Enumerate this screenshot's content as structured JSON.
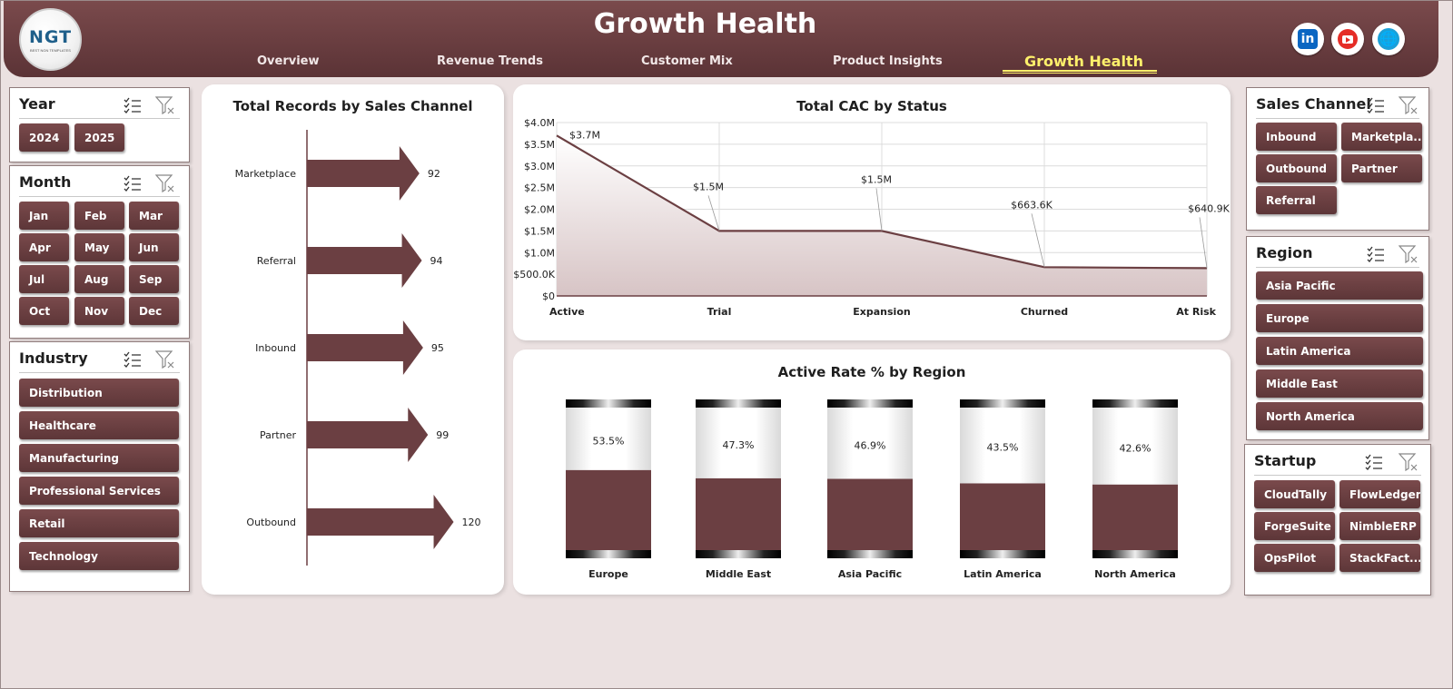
{
  "header": {
    "title": "Growth Health",
    "logo_text": "NGT",
    "logo_subtext": "BEST NGN TEMPLATES",
    "tabs": [
      {
        "label": "Overview",
        "active": false
      },
      {
        "label": "Revenue Trends",
        "active": false
      },
      {
        "label": "Customer Mix",
        "active": false
      },
      {
        "label": "Product Insights",
        "active": false
      },
      {
        "label": "Growth Health",
        "active": true
      }
    ],
    "social_icons": [
      "linkedin-icon",
      "youtube-icon",
      "website-icon"
    ]
  },
  "slicers": {
    "year": {
      "title": "Year",
      "items": [
        "2024",
        "2025"
      ]
    },
    "month": {
      "title": "Month",
      "items": [
        "Jan",
        "Feb",
        "Mar",
        "Apr",
        "May",
        "Jun",
        "Jul",
        "Aug",
        "Sep",
        "Oct",
        "Nov",
        "Dec"
      ]
    },
    "industry": {
      "title": "Industry",
      "items": [
        "Distribution",
        "Healthcare",
        "Manufacturing",
        "Professional Services",
        "Retail",
        "Technology"
      ]
    },
    "sales_channel": {
      "title": "Sales Channel",
      "items": [
        "Inbound",
        "Marketpla...",
        "Outbound",
        "Partner",
        "Referral"
      ]
    },
    "region": {
      "title": "Region",
      "items": [
        "Asia Pacific",
        "Europe",
        "Latin America",
        "Middle East",
        "North America"
      ]
    },
    "startup": {
      "title": "Startup",
      "items": [
        "CloudTally",
        "FlowLedger",
        "ForgeSuite",
        "NimbleERP",
        "OpsPilot",
        "StackFact..."
      ]
    }
  },
  "colors": {
    "primary": "#6b3f42",
    "accent_tab": "#fff06b",
    "background": "#ebe1e1"
  },
  "chart_data": [
    {
      "type": "bar",
      "orientation": "horizontal",
      "title": "Total Records by Sales Channel",
      "categories": [
        "Marketplace",
        "Referral",
        "Inbound",
        "Partner",
        "Outbound"
      ],
      "values": [
        92,
        94,
        95,
        99,
        120
      ],
      "value_labels": [
        "92",
        "94",
        "95",
        "99",
        "120"
      ]
    },
    {
      "type": "area",
      "title": "Total CAC by Status",
      "categories": [
        "Active",
        "Trial",
        "Expansion",
        "Churned",
        "At Risk"
      ],
      "values": [
        3700000,
        1500000,
        1500000,
        663600,
        640900
      ],
      "value_labels": [
        "$3.7M",
        "$1.5M",
        "$1.5M",
        "$663.6K",
        "$640.9K"
      ],
      "y_ticks": [
        "$0",
        "$500.0K",
        "$1.0M",
        "$1.5M",
        "$2.0M",
        "$2.5M",
        "$3.0M",
        "$3.5M",
        "$4.0M"
      ],
      "ylim": [
        0,
        4000000
      ],
      "grid": true
    },
    {
      "type": "bar",
      "title": "Active Rate % by Region",
      "categories": [
        "Europe",
        "Middle East",
        "Asia Pacific",
        "Latin America",
        "North America"
      ],
      "values": [
        53.5,
        47.3,
        46.9,
        43.5,
        42.6
      ],
      "value_labels": [
        "53.5%",
        "47.3%",
        "46.9%",
        "43.5%",
        "42.6%"
      ]
    }
  ]
}
